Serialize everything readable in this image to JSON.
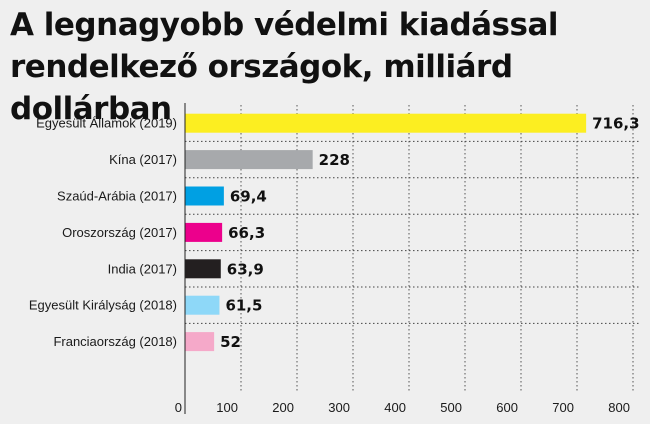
{
  "chart_data": {
    "type": "bar",
    "orientation": "horizontal",
    "title": "A legnagyobb védelmi kiadással rendelkező országok, milliárd dollárban",
    "categories": [
      "Egyesült Államok (2019)",
      "Kína (2017)",
      "Szaúd-Arábia (2017)",
      "Oroszország (2017)",
      "India (2017)",
      "Egyesült Királyság (2018)",
      "Franciaország (2018)"
    ],
    "values": [
      716.3,
      228,
      69.4,
      66.3,
      63.9,
      61.5,
      52
    ],
    "value_labels": [
      "716,3",
      "228",
      "69,4",
      "66,3",
      "63,9",
      "61,5",
      "52"
    ],
    "colors": [
      "#fcee21",
      "#a7a9ac",
      "#00a0e3",
      "#ec008c",
      "#231f20",
      "#8ed8f8",
      "#f5a9c9"
    ],
    "xlim": [
      0,
      800
    ],
    "xticks": [
      0,
      100,
      200,
      300,
      400,
      500,
      600,
      700,
      800
    ],
    "xlabel": "",
    "ylabel": "",
    "grid": "vertical dotted",
    "legend": "none"
  }
}
